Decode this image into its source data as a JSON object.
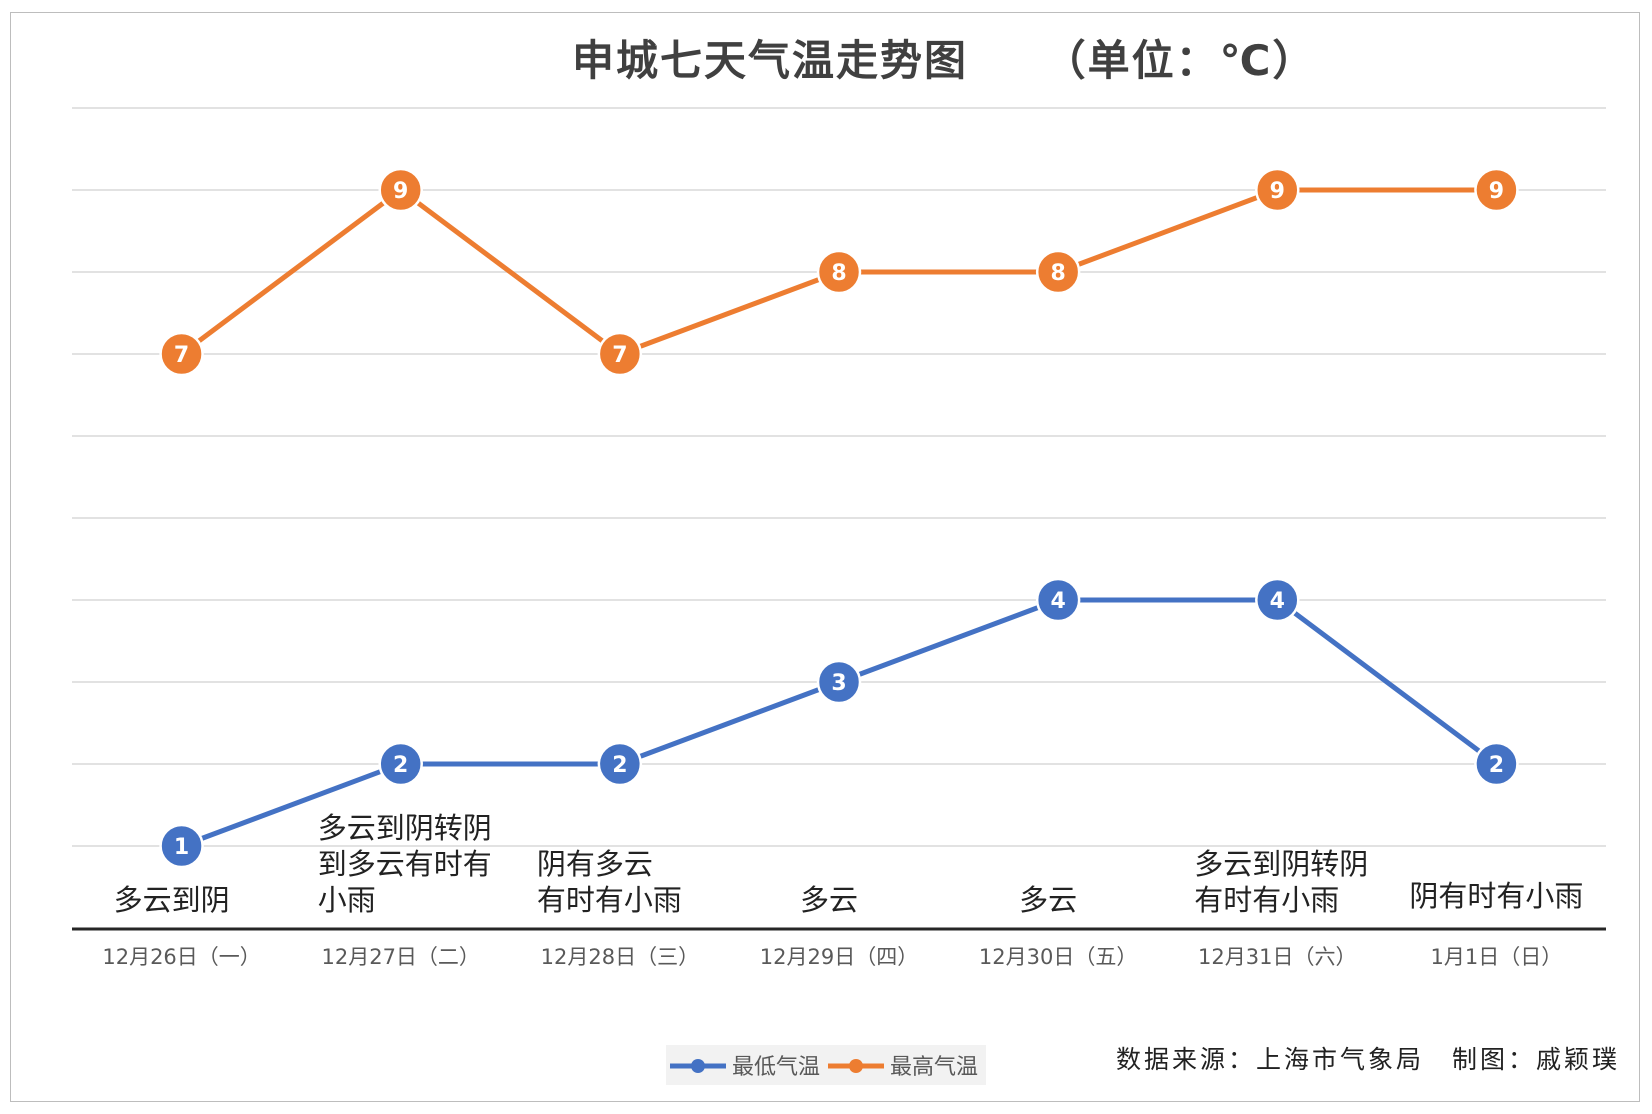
{
  "chart_data": {
    "type": "line",
    "title": "申城七天气温走势图",
    "unit_label": "（单位：℃）",
    "categories": [
      "12月26日（一）",
      "12月27日（二）",
      "12月28日（三）",
      "12月29日（四）",
      "12月30日（五）",
      "12月31日（六）",
      "1月1日（日）"
    ],
    "weather": [
      [
        "多云到阴"
      ],
      [
        "多云到阴转阴",
        "到多云有时有",
        "小雨"
      ],
      [
        "阴有多云",
        "有时有小雨"
      ],
      [
        "多云"
      ],
      [
        "多云"
      ],
      [
        "多云到阴转阴",
        "有时有小雨"
      ],
      [
        "阴有时有小雨"
      ]
    ],
    "series": [
      {
        "name": "最低气温",
        "color": "#4472c4",
        "values": [
          1,
          2,
          2,
          3,
          4,
          4,
          2
        ]
      },
      {
        "name": "最高气温",
        "color": "#ed7d31",
        "values": [
          7,
          9,
          7,
          8,
          8,
          9,
          9
        ]
      }
    ],
    "ylim": [
      1,
      10
    ],
    "grid": true,
    "legend": "bottom-center",
    "source": "数据来源：上海市气象局　制图：戚颖璞"
  }
}
